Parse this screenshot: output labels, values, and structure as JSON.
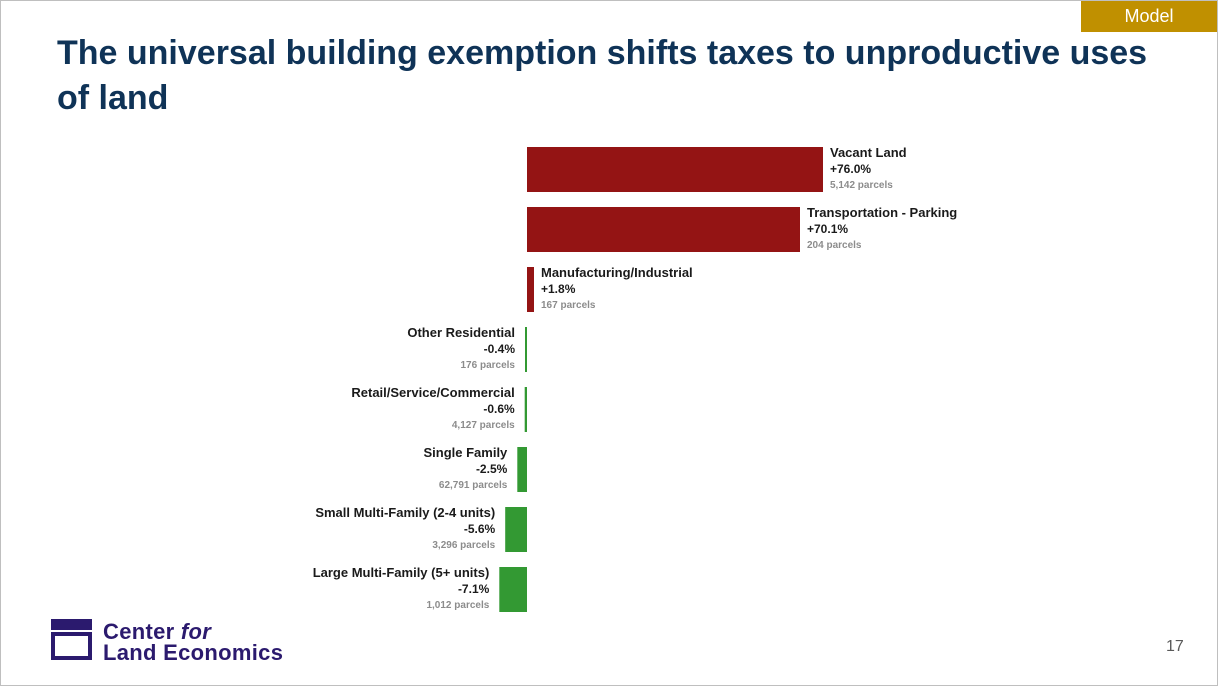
{
  "badge": {
    "label": "Model",
    "color": "#c09000"
  },
  "title": "The universal building exemption shifts taxes to unproductive uses of land",
  "chart_data": {
    "type": "bar",
    "orientation": "horizontal",
    "title": "",
    "unit": "% change in tax",
    "categories": [
      "Vacant Land",
      "Transportation - Parking",
      "Manufacturing/Industrial",
      "Other Residential",
      "Retail/Service/Commercial",
      "Single Family",
      "Small Multi-Family (2-4 units)",
      "Large Multi-Family (5+ units)"
    ],
    "values": [
      76.0,
      70.1,
      1.8,
      -0.4,
      -0.6,
      -2.5,
      -5.6,
      -7.1
    ],
    "value_labels": [
      "+76.0%",
      "+70.1%",
      "+1.8%",
      "-0.4%",
      "-0.6%",
      "-2.5%",
      "-5.6%",
      "-7.1%"
    ],
    "parcel_labels": [
      "5,142 parcels",
      "204 parcels",
      "167 parcels",
      "176 parcels",
      "4,127 parcels",
      "62,791 parcels",
      "3,296 parcels",
      "1,012 parcels"
    ],
    "colors": {
      "positive": "#941414",
      "negative": "#339933"
    }
  },
  "logo": {
    "line1": "Center ",
    "line1_italic": "for",
    "line2": "Land Economics",
    "color": "#2b1a6e"
  },
  "page_number": "17"
}
